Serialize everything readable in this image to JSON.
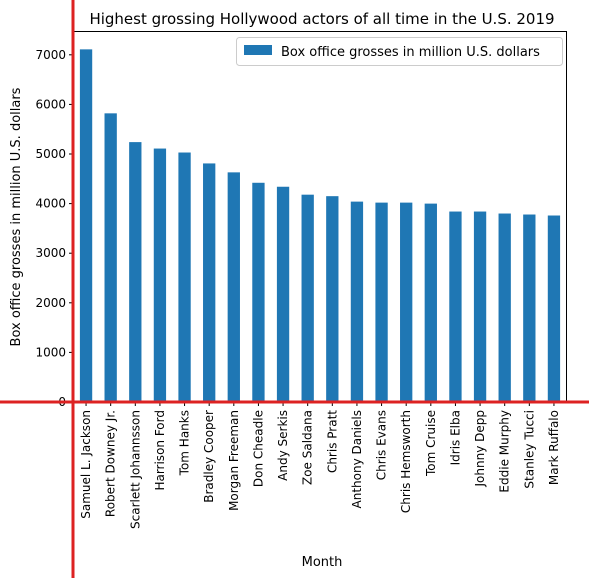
{
  "chart_data": {
    "type": "bar",
    "title": "Highest grossing Hollywood actors of all time in the U.S. 2019",
    "xlabel": "Month",
    "ylabel": "Box office grosses in million U.S. dollars",
    "categories": [
      "Samuel L. Jackson",
      "Robert Downey Jr.",
      "Scarlett Johannsson",
      "Harrison Ford",
      "Tom Hanks",
      "Bradley Cooper",
      "Morgan Freeman",
      "Don Cheadle",
      "Andy Serkis",
      "Zoe Saldana",
      "Chris Pratt",
      "Anthony Daniels",
      "Chris Evans",
      "Chris Hemsworth",
      "Tom Cruise",
      "Idris Elba",
      "Johnny Depp",
      "Eddie Murphy",
      "Stanley Tucci",
      "Mark Ruffalo"
    ],
    "series": [
      {
        "name": "Box office grosses in million U.S. dollars",
        "color": "#1f77b4",
        "values": [
          7110,
          5820,
          5240,
          5110,
          5030,
          4810,
          4630,
          4420,
          4340,
          4180,
          4150,
          4040,
          4020,
          4020,
          4000,
          3840,
          3840,
          3800,
          3780,
          3760
        ]
      }
    ],
    "ylim": [
      0,
      7460
    ],
    "yticks": [
      0,
      1000,
      2000,
      3000,
      4000,
      5000,
      6000,
      7000
    ],
    "grid": false,
    "legend_position": "top-right",
    "overlay_lines_color": "#dd2222"
  }
}
